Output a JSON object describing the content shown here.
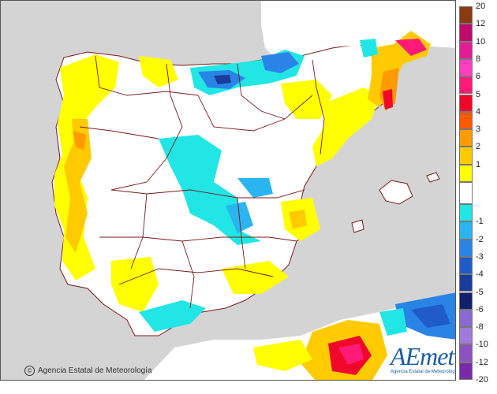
{
  "map": {
    "credit": "Agencia Estatal de Meteorología",
    "credit_icon": "copyright-icon",
    "logo": {
      "mark_a": "A",
      "mark_rest": "Emet",
      "subtitle": "Agencia Estatal de Meteorología"
    }
  },
  "legend": {
    "positive": [
      {
        "label": "20",
        "color": "#8b3a0f"
      },
      {
        "label": "12",
        "color": "#c10a6b"
      },
      {
        "label": "10",
        "color": "#e21d94"
      },
      {
        "label": "8",
        "color": "#ff3fbf"
      },
      {
        "label": "6",
        "color": "#ff1a78"
      },
      {
        "label": "5",
        "color": "#f0082a"
      },
      {
        "label": "4",
        "color": "#ff5a00"
      },
      {
        "label": "3",
        "color": "#ff9a00"
      },
      {
        "label": "2",
        "color": "#ffcb00"
      },
      {
        "label": "1",
        "color": "#ffff00"
      }
    ],
    "negative": [
      {
        "label": "-1",
        "color": "#22e6e6"
      },
      {
        "label": "-2",
        "color": "#2ab4f0"
      },
      {
        "label": "-3",
        "color": "#2a84e6"
      },
      {
        "label": "-4",
        "color": "#1f5cc8"
      },
      {
        "label": "-5",
        "color": "#1a3c9a"
      },
      {
        "label": "-6",
        "color": "#141e6a"
      },
      {
        "label": "-8",
        "color": "#8a6ad0"
      },
      {
        "label": "-10",
        "color": "#a07ad8"
      },
      {
        "label": "-12",
        "color": "#8c52c0"
      },
      {
        "label": "-20",
        "color": "#7a2aa8"
      }
    ]
  }
}
